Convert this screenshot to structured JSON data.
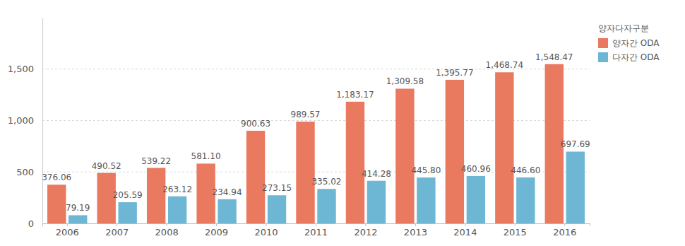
{
  "chart_data": {
    "type": "bar",
    "legend_title": "양자다자구분",
    "categories": [
      "2006",
      "2007",
      "2008",
      "2009",
      "2010",
      "2011",
      "2012",
      "2013",
      "2014",
      "2015",
      "2016"
    ],
    "series": [
      {
        "name": "양자간 ODA",
        "color": "#e9795f",
        "values": [
          376.06,
          490.52,
          539.22,
          581.1,
          900.63,
          989.57,
          1183.17,
          1309.58,
          1395.77,
          1468.74,
          1548.47
        ],
        "value_labels": [
          "376.06",
          "490.52",
          "539.22",
          "581.10",
          "900.63",
          "989.57",
          "1,183.17",
          "1,309.58",
          "1,395.77",
          "1,468.74",
          "1,548.47"
        ]
      },
      {
        "name": "다자간 ODA",
        "color": "#6db7d4",
        "values": [
          79.19,
          205.59,
          263.12,
          234.94,
          273.15,
          335.02,
          414.28,
          445.8,
          460.96,
          446.6,
          697.69
        ],
        "value_labels": [
          "79.19",
          "205.59",
          "263.12",
          "234.94",
          "273.15",
          "335.02",
          "414.28",
          "445.80",
          "460.96",
          "446.60",
          "697.69"
        ]
      }
    ],
    "ylim": [
      0,
      2000
    ],
    "yticks": [
      0,
      500,
      {
        "value": 1000,
        "label": "1,000"
      },
      {
        "value": 1500,
        "label": "1,500"
      }
    ],
    "grid": true,
    "data_labels": true,
    "legend": "right"
  }
}
